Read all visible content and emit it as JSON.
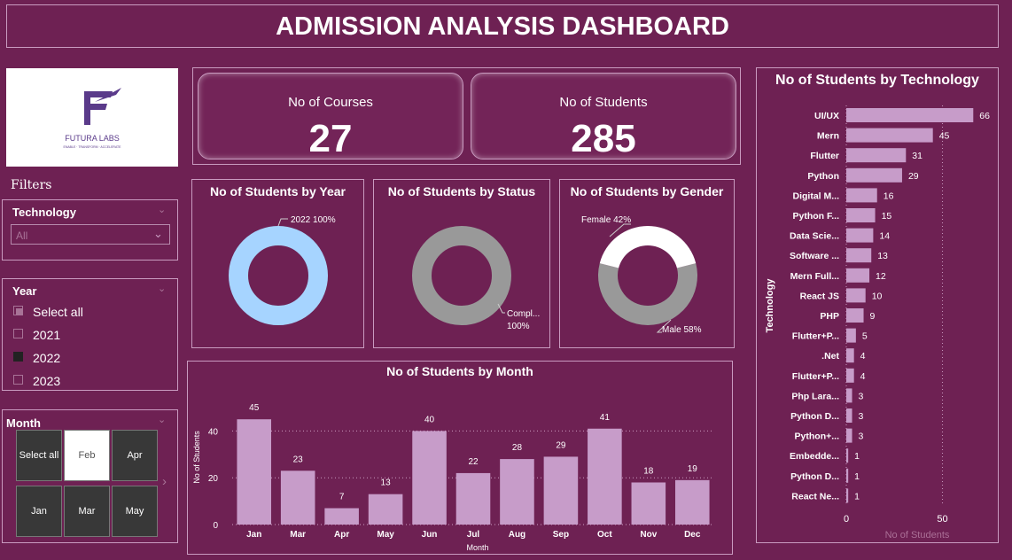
{
  "header": {
    "title": "ADMISSION ANALYSIS DASHBOARD"
  },
  "logo": {
    "name": "FUTURA LABS",
    "tagline": "ENABLE · TRANSFORM · ACCELERATE",
    "color": "#5a3a8a"
  },
  "kpis": [
    {
      "label": "No of Courses",
      "value": "27"
    },
    {
      "label": "No of Students",
      "value": "285"
    }
  ],
  "filters": {
    "label": "Filters",
    "technology": {
      "title": "Technology",
      "selected": "All"
    },
    "year": {
      "title": "Year",
      "options": [
        {
          "label": "Select all",
          "state": "partial"
        },
        {
          "label": "2021",
          "state": "off"
        },
        {
          "label": "2022",
          "state": "on"
        },
        {
          "label": "2023",
          "state": "off"
        }
      ]
    },
    "month": {
      "title": "Month",
      "tiles": [
        {
          "label": "Select all",
          "selected": false
        },
        {
          "label": "Feb",
          "selected": true
        },
        {
          "label": "Apr",
          "selected": false
        },
        {
          "label": "Jan",
          "selected": false
        },
        {
          "label": "Mar",
          "selected": false
        },
        {
          "label": "May",
          "selected": false
        }
      ]
    }
  },
  "donuts": {
    "year": {
      "title": "No of Students by Year",
      "label": "2022 100%",
      "color": "#a6d4ff"
    },
    "status": {
      "title": "No of Students by Status",
      "label_line1": "Compl...",
      "label_line2": "100%",
      "color": "#999999"
    },
    "gender": {
      "title": "No of Students by Gender",
      "female_label": "Female 42%",
      "male_label": "Male 58%",
      "female_pct": 42,
      "male_pct": 58,
      "female_color": "#ffffff",
      "male_color": "#999999"
    }
  },
  "colors": {
    "bar": "#c79cc9",
    "background": "#6e2153",
    "border": "#c99bc0"
  },
  "chart_data": [
    {
      "type": "bar",
      "title": "No of Students by Month",
      "xlabel": "Month",
      "ylabel": "No of Students",
      "categories": [
        "Jan",
        "Mar",
        "Apr",
        "May",
        "Jun",
        "Jul",
        "Aug",
        "Sep",
        "Oct",
        "Nov",
        "Dec"
      ],
      "values": [
        45,
        23,
        7,
        13,
        40,
        22,
        28,
        29,
        41,
        18,
        19
      ],
      "yticks": [
        0,
        20,
        40
      ],
      "ylim": [
        0,
        50
      ]
    },
    {
      "type": "bar",
      "orientation": "horizontal",
      "title": "No of Students by Technology",
      "xlabel": "No of Students",
      "ylabel": "Technology",
      "categories": [
        "UI/UX",
        "Mern",
        "Flutter",
        "Python",
        "Digital M...",
        "Python F...",
        "Data Scie...",
        "Software ...",
        "Mern Full...",
        "React JS",
        "PHP",
        "Flutter+P...",
        ".Net",
        "Flutter+P...",
        "Php Lara...",
        "Python D...",
        "Python+...",
        "Embedde...",
        "Python D...",
        "React Ne..."
      ],
      "values": [
        66,
        45,
        31,
        29,
        16,
        15,
        14,
        13,
        12,
        10,
        9,
        5,
        4,
        4,
        3,
        3,
        3,
        1,
        1,
        1
      ],
      "xticks": [
        0,
        50
      ],
      "xlim": [
        0,
        76
      ]
    }
  ]
}
